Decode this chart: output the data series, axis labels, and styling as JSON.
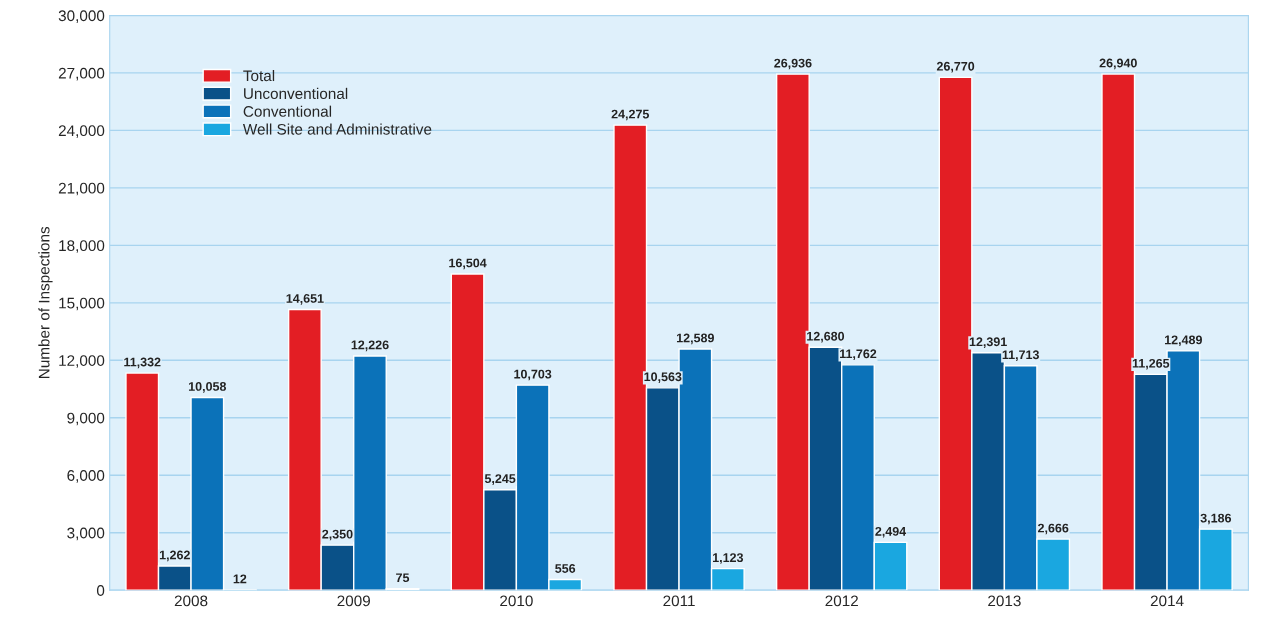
{
  "chart_data": {
    "type": "bar",
    "ylabel": "Number of Inspections",
    "categories": [
      "2008",
      "2009",
      "2010",
      "2011",
      "2012",
      "2013",
      "2014"
    ],
    "series": [
      {
        "name": "Total",
        "color": "#e31e24",
        "values": [
          11332,
          14651,
          16504,
          24275,
          26936,
          26770,
          26940
        ],
        "value_labels": [
          "11,332",
          "14,651",
          "16,504",
          "24,275",
          "26,936",
          "26,770",
          "26,940"
        ]
      },
      {
        "name": "Unconventional",
        "color": "#0a5188",
        "values": [
          1262,
          2350,
          5245,
          10563,
          12680,
          12391,
          11265
        ],
        "value_labels": [
          "1,262",
          "2,350",
          "5,245",
          "10,563",
          "12,680",
          "12,391",
          "11,265"
        ]
      },
      {
        "name": "Conventional",
        "color": "#0b72b9",
        "values": [
          10058,
          12226,
          10703,
          12589,
          11762,
          11713,
          12489
        ],
        "value_labels": [
          "10,058",
          "12,226",
          "10,703",
          "12,589",
          "11,762",
          "11,713",
          "12,489"
        ]
      },
      {
        "name": "Well Site and Administrative",
        "color": "#1aa7e0",
        "values": [
          12,
          75,
          556,
          1123,
          2494,
          2666,
          3186
        ],
        "value_labels": [
          "12",
          "75",
          "556",
          "1,123",
          "2,494",
          "2,666",
          "3,186"
        ]
      }
    ],
    "ylim": [
      0,
      30000
    ],
    "yticks": [
      0,
      {
        "value": 3000,
        "label": "3,000"
      },
      {
        "value": 6000,
        "label": "6,000"
      },
      {
        "value": 9000,
        "label": "9,000"
      },
      {
        "value": 12000,
        "label": "12,000"
      },
      {
        "value": 15000,
        "label": "15,000"
      },
      {
        "value": 18000,
        "label": "18,000"
      },
      {
        "value": 21000,
        "label": "21,000"
      },
      {
        "value": 24000,
        "label": "24,000"
      },
      {
        "value": 27000,
        "label": "27,000"
      },
      {
        "value": 30000,
        "label": "30,000"
      }
    ],
    "grid": "y",
    "legend": "top left"
  }
}
